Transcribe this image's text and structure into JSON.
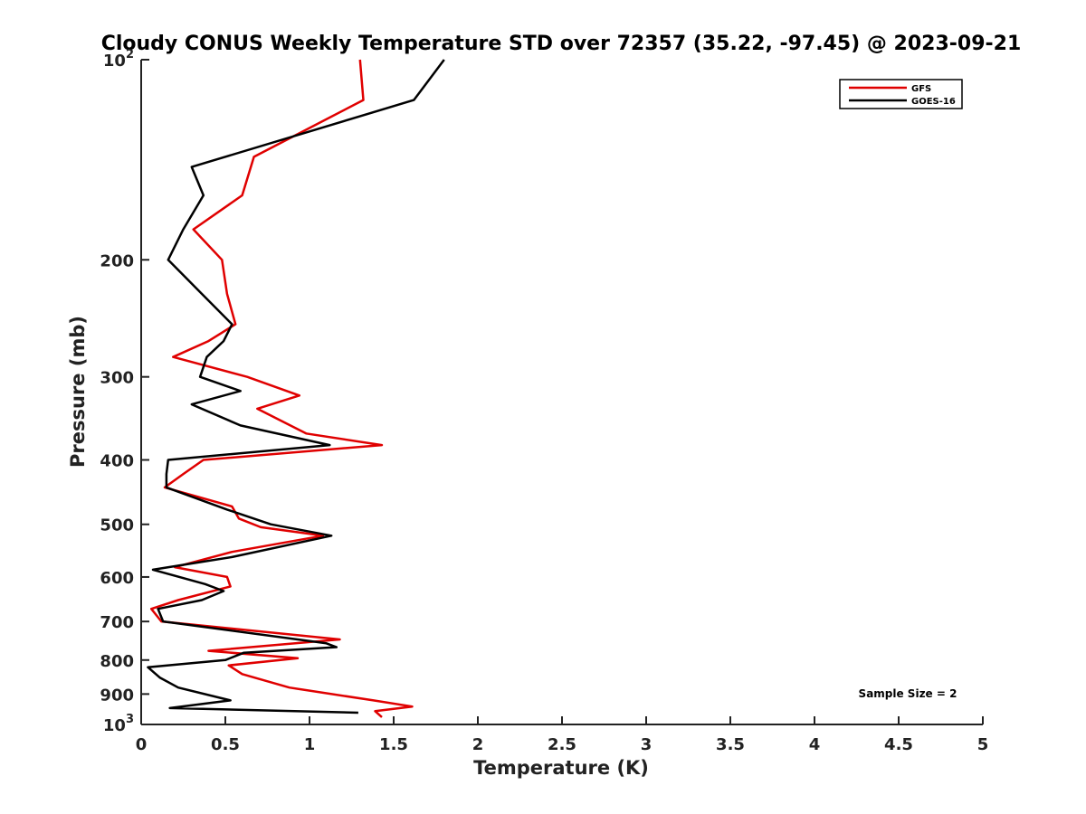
{
  "chart_data": {
    "type": "line",
    "title": "Cloudy CONUS Weekly Temperature STD over 72357 (35.22, -97.45) @ 2023-09-21",
    "xlabel": "Temperature (K)",
    "ylabel": "Pressure (mb)",
    "xlim": [
      0,
      5
    ],
    "ylim": [
      100,
      1000
    ],
    "yscale": "log",
    "yreversed": true,
    "grid": false,
    "legend_position": "top-right",
    "x_ticks": [
      "0",
      "0.5",
      "1",
      "1.5",
      "2",
      "2.5",
      "3",
      "3.5",
      "4",
      "4.5",
      "5"
    ],
    "x_tick_values": [
      0,
      0.5,
      1,
      1.5,
      2,
      2.5,
      3,
      3.5,
      4,
      4.5,
      5
    ],
    "y_tick_values": [
      100,
      200,
      300,
      400,
      500,
      600,
      700,
      800,
      900,
      1000
    ],
    "y_ticks": [
      {
        "base": "10",
        "exp": "2"
      },
      {
        "base": "200",
        "exp": ""
      },
      {
        "base": "300",
        "exp": ""
      },
      {
        "base": "400",
        "exp": ""
      },
      {
        "base": "500",
        "exp": ""
      },
      {
        "base": "600",
        "exp": ""
      },
      {
        "base": "700",
        "exp": ""
      },
      {
        "base": "800",
        "exp": ""
      },
      {
        "base": "900",
        "exp": ""
      },
      {
        "base": "10",
        "exp": "3"
      }
    ],
    "annotation": "Sample Size = 2",
    "series": [
      {
        "name": "GFS",
        "color": "#e00000",
        "points": [
          [
            1.3,
            100
          ],
          [
            1.32,
            115
          ],
          [
            0.67,
            140
          ],
          [
            0.6,
            160
          ],
          [
            0.31,
            180
          ],
          [
            0.48,
            200
          ],
          [
            0.51,
            225
          ],
          [
            0.56,
            250
          ],
          [
            0.4,
            265
          ],
          [
            0.19,
            280
          ],
          [
            0.63,
            300
          ],
          [
            0.94,
            320
          ],
          [
            0.69,
            335
          ],
          [
            0.98,
            365
          ],
          [
            1.43,
            380
          ],
          [
            0.37,
            400
          ],
          [
            0.25,
            420
          ],
          [
            0.14,
            440
          ],
          [
            0.54,
            470
          ],
          [
            0.58,
            490
          ],
          [
            0.71,
            505
          ],
          [
            1.08,
            520
          ],
          [
            0.54,
            550
          ],
          [
            0.2,
            580
          ],
          [
            0.51,
            600
          ],
          [
            0.53,
            620
          ],
          [
            0.22,
            650
          ],
          [
            0.06,
            670
          ],
          [
            0.12,
            700
          ],
          [
            1.18,
            745
          ],
          [
            0.4,
            775
          ],
          [
            0.93,
            795
          ],
          [
            0.52,
            815
          ],
          [
            0.6,
            840
          ],
          [
            0.88,
            880
          ],
          [
            1.38,
            920
          ],
          [
            1.61,
            940
          ],
          [
            1.39,
            955
          ],
          [
            1.43,
            975
          ]
        ]
      },
      {
        "name": "GOES-16",
        "color": "#000000",
        "points": [
          [
            1.8,
            100
          ],
          [
            1.62,
            115
          ],
          [
            0.3,
            145
          ],
          [
            0.37,
            160
          ],
          [
            0.25,
            180
          ],
          [
            0.16,
            200
          ],
          [
            0.36,
            225
          ],
          [
            0.54,
            250
          ],
          [
            0.49,
            265
          ],
          [
            0.39,
            280
          ],
          [
            0.35,
            300
          ],
          [
            0.59,
            315
          ],
          [
            0.3,
            330
          ],
          [
            0.59,
            355
          ],
          [
            1.12,
            380
          ],
          [
            0.16,
            400
          ],
          [
            0.15,
            420
          ],
          [
            0.15,
            440
          ],
          [
            0.51,
            475
          ],
          [
            0.77,
            500
          ],
          [
            1.13,
            520
          ],
          [
            0.54,
            560
          ],
          [
            0.07,
            585
          ],
          [
            0.38,
            615
          ],
          [
            0.49,
            630
          ],
          [
            0.36,
            650
          ],
          [
            0.1,
            670
          ],
          [
            0.13,
            700
          ],
          [
            1.1,
            755
          ],
          [
            1.16,
            765
          ],
          [
            0.61,
            780
          ],
          [
            0.5,
            800
          ],
          [
            0.04,
            820
          ],
          [
            0.11,
            850
          ],
          [
            0.22,
            880
          ],
          [
            0.53,
            920
          ],
          [
            0.17,
            945
          ],
          [
            1.29,
            960
          ]
        ]
      }
    ]
  }
}
